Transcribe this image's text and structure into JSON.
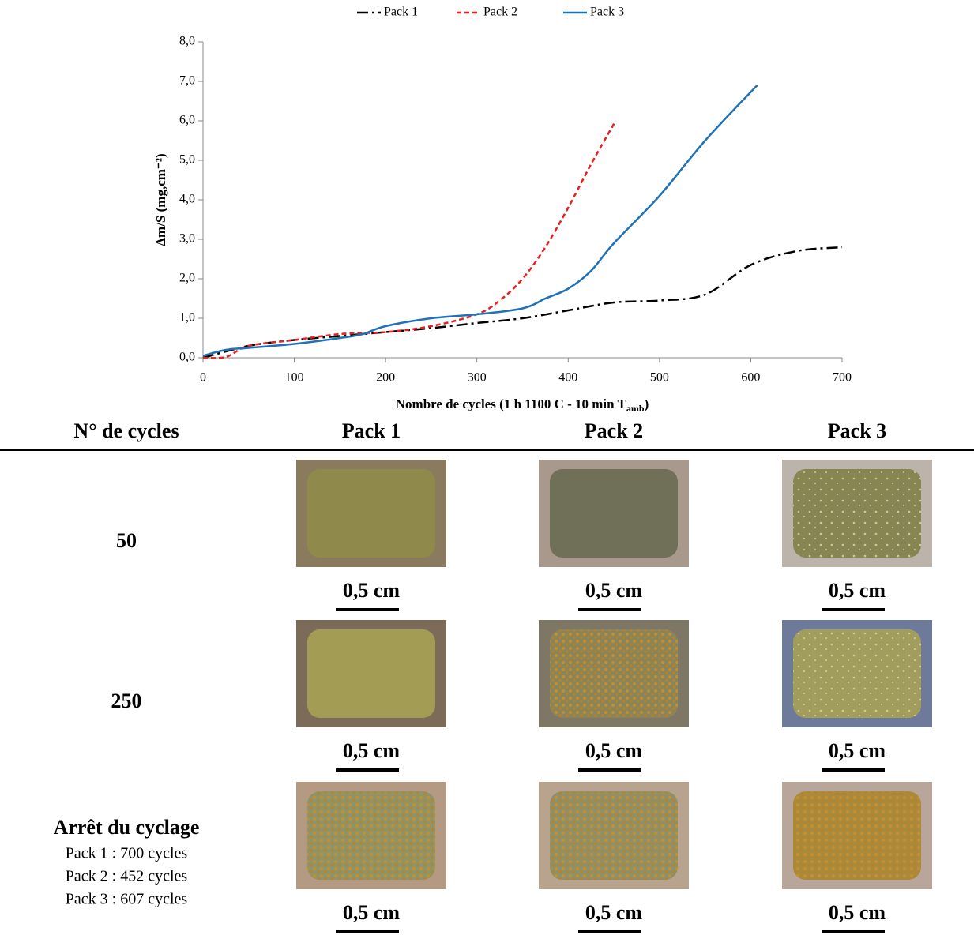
{
  "chart_data": {
    "type": "line",
    "xlabel": [
      "Nombre de cycles (1 h 1100 C - 10 min T",
      "amb",
      ")"
    ],
    "ylabel": "Δm/S (mg,cm⁻²)",
    "xlim": [
      0,
      700
    ],
    "xticks": [
      0,
      100,
      200,
      300,
      400,
      500,
      600,
      700
    ],
    "ylim": [
      0,
      8
    ],
    "yticks": [
      {
        "value": 0,
        "label": "0,0"
      },
      {
        "value": 1,
        "label": "1,0"
      },
      {
        "value": 2,
        "label": "2,0"
      },
      {
        "value": 3,
        "label": "3,0"
      },
      {
        "value": 4,
        "label": "4,0"
      },
      {
        "value": 5,
        "label": "5,0"
      },
      {
        "value": 6,
        "label": "6,0"
      },
      {
        "value": 7,
        "label": "7,0"
      },
      {
        "value": 8,
        "label": "8,0"
      }
    ],
    "legend": "top",
    "series": [
      {
        "name": "Pack 1",
        "color": "#000000",
        "dash": "14 5 3 5",
        "x": [
          0,
          50,
          100,
          150,
          200,
          250,
          300,
          350,
          400,
          450,
          500,
          550,
          600,
          650,
          700
        ],
        "values": [
          0,
          0.3,
          0.45,
          0.55,
          0.65,
          0.75,
          0.88,
          1.0,
          1.2,
          1.4,
          1.45,
          1.6,
          2.35,
          2.7,
          2.8
        ]
      },
      {
        "name": "Pack 2",
        "color": "#e8201e",
        "dash": "6 4",
        "x": [
          0,
          25,
          50,
          100,
          150,
          200,
          250,
          300,
          325,
          350,
          375,
          400,
          425,
          452
        ],
        "values": [
          0,
          0.02,
          0.3,
          0.45,
          0.6,
          0.65,
          0.8,
          1.1,
          1.45,
          2.0,
          2.8,
          3.8,
          4.9,
          6.0
        ]
      },
      {
        "name": "Pack 3",
        "color": "#1f72b8",
        "dash": "",
        "x": [
          0,
          25,
          50,
          100,
          150,
          175,
          200,
          250,
          300,
          350,
          375,
          400,
          425,
          450,
          500,
          550,
          607
        ],
        "values": [
          0.05,
          0.2,
          0.25,
          0.35,
          0.5,
          0.6,
          0.8,
          1.0,
          1.1,
          1.25,
          1.5,
          1.75,
          2.2,
          2.9,
          4.1,
          5.5,
          6.9
        ]
      }
    ]
  },
  "table": {
    "header": [
      "N° de cycles",
      "Pack 1",
      "Pack 2",
      "Pack 3"
    ],
    "rows": [
      {
        "label": "50",
        "notes": [],
        "cells": [
          {
            "scale": "0,5 cm"
          },
          {
            "scale": "0,5 cm"
          },
          {
            "scale": "0,5 cm"
          }
        ]
      },
      {
        "label": "250",
        "notes": [],
        "cells": [
          {
            "scale": "0,5 cm"
          },
          {
            "scale": "0,5 cm"
          },
          {
            "scale": "0,5 cm"
          }
        ]
      },
      {
        "label": "Arrêt du cyclage",
        "notes": [
          "Pack 1 : 700 cycles",
          "Pack 2 : 452 cycles",
          "Pack 3 : 607 cycles"
        ],
        "cells": [
          {
            "scale": "0,5 cm"
          },
          {
            "scale": "0,5 cm"
          },
          {
            "scale": "0,5 cm"
          }
        ]
      }
    ]
  }
}
